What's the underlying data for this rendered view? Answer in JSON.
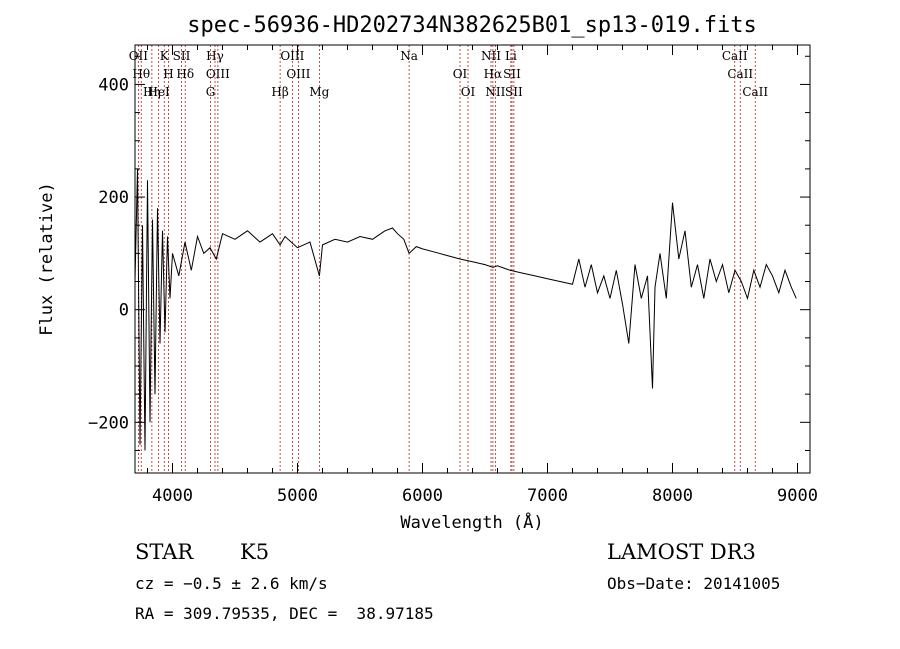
{
  "chart_data": {
    "type": "line",
    "title": "spec-56936-HD202734N382625B01_sp13-019.fits",
    "xlabel": "Wavelength (Å)",
    "ylabel": "Flux (relative)",
    "xlim": [
      3700,
      9100
    ],
    "ylim": [
      -290,
      470
    ],
    "xticks": [
      4000,
      5000,
      6000,
      7000,
      8000,
      9000
    ],
    "yticks": [
      -200,
      0,
      200,
      400
    ],
    "grid": false,
    "series": [
      {
        "x": [
          3700,
          3720,
          3740,
          3760,
          3780,
          3800,
          3820,
          3840,
          3860,
          3880,
          3900,
          3920,
          3940,
          3960,
          3980,
          4000,
          4050,
          4100,
          4150,
          4200,
          4250,
          4300,
          4350,
          4400,
          4500,
          4600,
          4700,
          4800,
          4861,
          4900,
          5000,
          5100,
          5175,
          5200,
          5300,
          5400,
          5500,
          5600,
          5700,
          5760,
          5800,
          5850,
          5893,
          5950,
          6000,
          6100,
          6200,
          6300,
          6400,
          6500,
          6563,
          6600,
          6700,
          6800,
          6900,
          7000,
          7100,
          7200,
          7250,
          7300,
          7350,
          7400,
          7450,
          7500,
          7550,
          7600,
          7650,
          7700,
          7750,
          7800,
          7840,
          7860,
          7900,
          7950,
          8000,
          8050,
          8100,
          8150,
          8200,
          8250,
          8300,
          8350,
          8400,
          8450,
          8500,
          8550,
          8600,
          8650,
          8700,
          8750,
          8800,
          8850,
          8900,
          8950,
          8990
        ],
        "y": [
          50,
          250,
          -240,
          150,
          -250,
          230,
          -200,
          160,
          -150,
          180,
          -60,
          140,
          -40,
          130,
          20,
          100,
          60,
          120,
          70,
          130,
          100,
          110,
          90,
          135,
          125,
          140,
          120,
          135,
          115,
          130,
          110,
          120,
          60,
          115,
          125,
          120,
          130,
          125,
          140,
          145,
          135,
          125,
          100,
          112,
          108,
          102,
          96,
          90,
          85,
          80,
          75,
          78,
          70,
          65,
          60,
          55,
          50,
          45,
          90,
          40,
          80,
          30,
          60,
          20,
          70,
          10,
          -60,
          80,
          20,
          60,
          -140,
          40,
          100,
          20,
          190,
          90,
          140,
          40,
          80,
          20,
          90,
          50,
          80,
          30,
          70,
          50,
          20,
          70,
          40,
          80,
          60,
          30,
          70,
          40,
          20
        ]
      }
    ],
    "lines": [
      {
        "name": "OII",
        "x": 3727
      },
      {
        "name": "Hθ",
        "x": 3750
      },
      {
        "name": "Hη",
        "x": 3835
      },
      {
        "name": "K",
        "x": 3934
      },
      {
        "name": "H",
        "x": 3968
      },
      {
        "name": "HeI",
        "x": 3889
      },
      {
        "name": "SII",
        "x": 4072
      },
      {
        "name": "Hδ",
        "x": 4102
      },
      {
        "name": "G",
        "x": 4304
      },
      {
        "name": "Hγ",
        "x": 4340
      },
      {
        "name": "OIII",
        "x": 4363
      },
      {
        "name": "Hβ",
        "x": 4861
      },
      {
        "name": "OIII",
        "x": 4959
      },
      {
        "name": "OIII",
        "x": 5007
      },
      {
        "name": "Mg",
        "x": 5175
      },
      {
        "name": "Na",
        "x": 5893
      },
      {
        "name": "OI",
        "x": 6300
      },
      {
        "name": "OI",
        "x": 6364
      },
      {
        "name": "NII",
        "x": 6548
      },
      {
        "name": "Hα",
        "x": 6563
      },
      {
        "name": "NII",
        "x": 6583
      },
      {
        "name": "Li",
        "x": 6707
      },
      {
        "name": "SII",
        "x": 6716
      },
      {
        "name": "SII",
        "x": 6731
      },
      {
        "name": "CaII",
        "x": 8498
      },
      {
        "name": "CaII",
        "x": 8542
      },
      {
        "name": "CaII",
        "x": 8662
      }
    ]
  },
  "info": {
    "object_class": "STAR",
    "subclass": "K5",
    "survey": "LAMOST DR3",
    "cz": "cz = −0.5 ± 2.6 km/s",
    "obs_date": "Obs−Date: 20141005",
    "coords": "RA = 309.79535, DEC =  38.97185"
  },
  "colors": {
    "spectrum": "#000000",
    "line_marker": "#b22222",
    "axis": "#000000"
  }
}
